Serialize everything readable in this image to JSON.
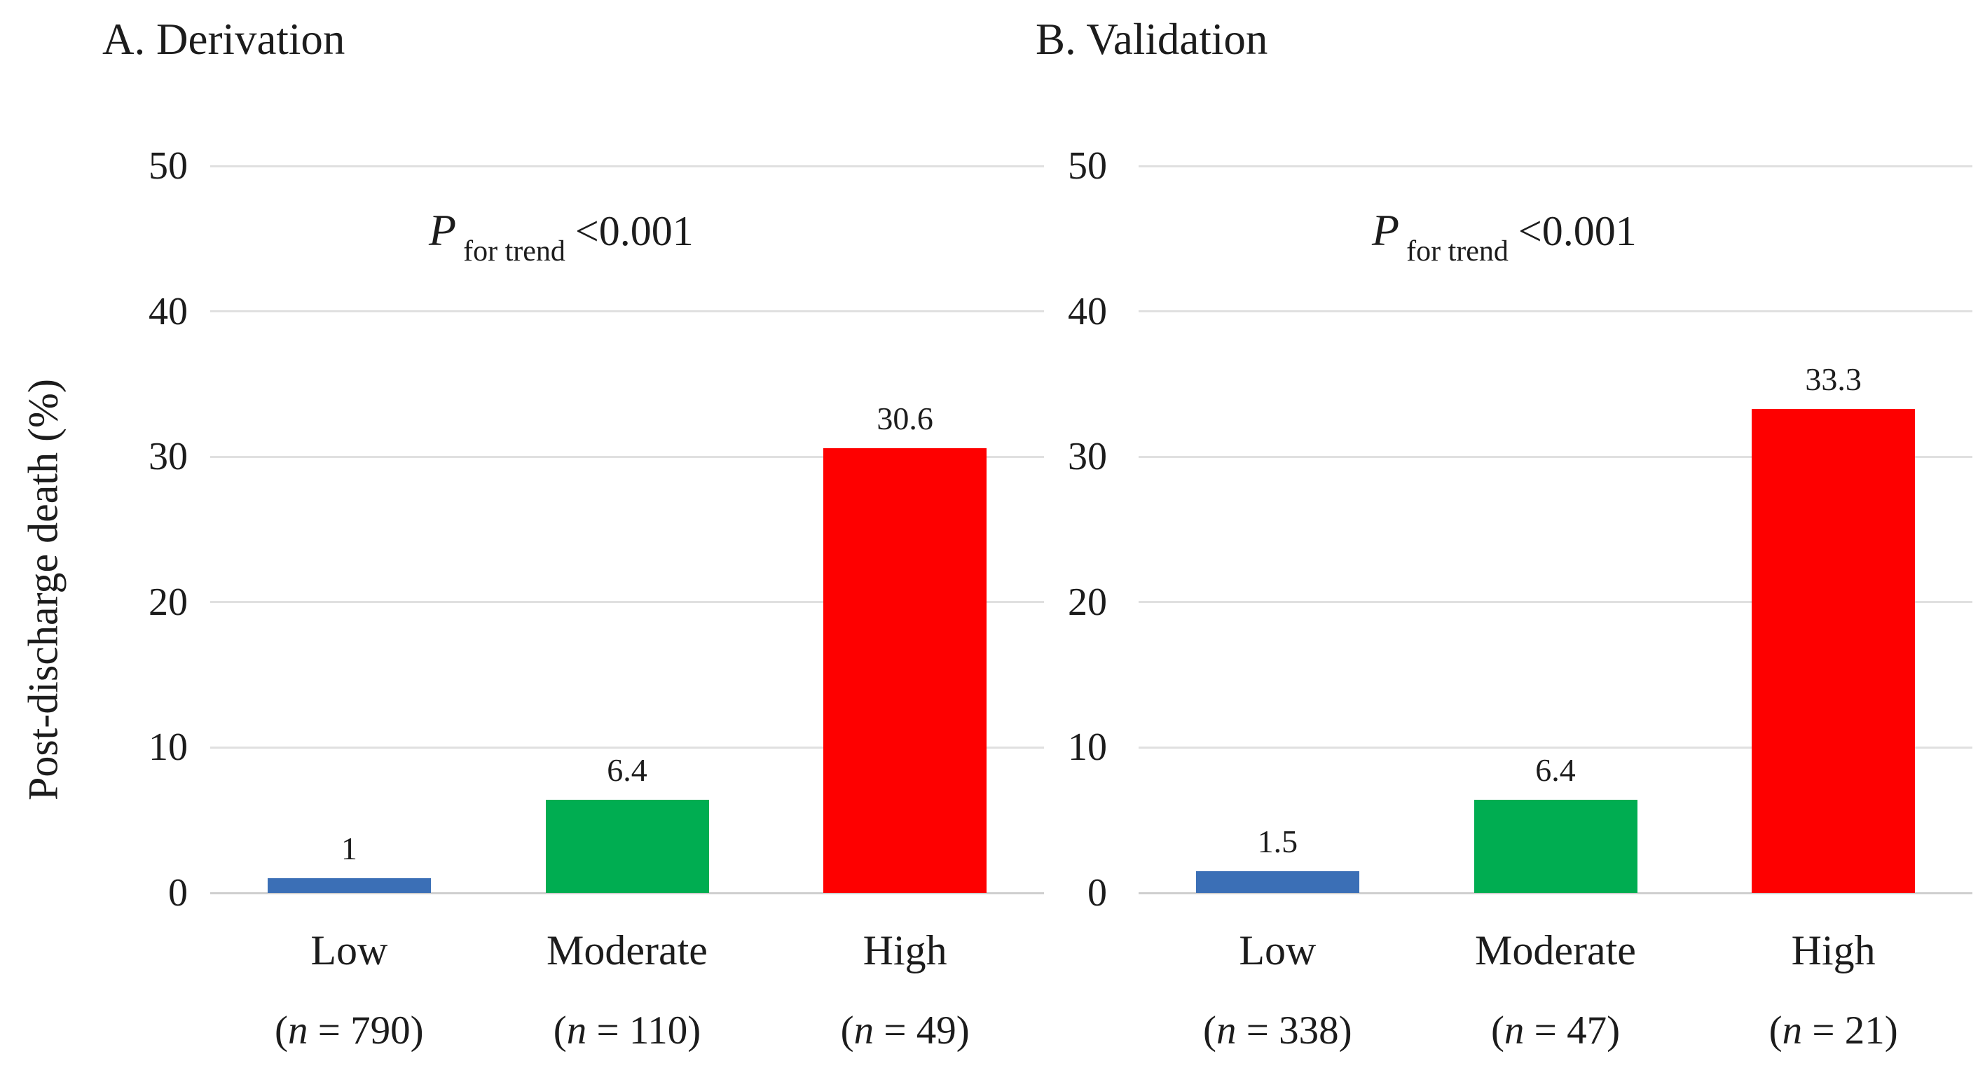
{
  "chart_data": [
    {
      "type": "bar",
      "panel": "A",
      "title": "A. Derivation",
      "ylabel": "Post-discharge death (%)",
      "ylim": [
        0,
        50
      ],
      "yticks": [
        0,
        10,
        20,
        30,
        40,
        50
      ],
      "grid": true,
      "legend": false,
      "categories": [
        "Low",
        "Moderate",
        "High"
      ],
      "n_labels": [
        "(n = 790)",
        "(n = 110)",
        "(n = 49)"
      ],
      "values": [
        1,
        6.4,
        30.6
      ],
      "value_labels": [
        "1",
        "6.4",
        "30.6"
      ],
      "bar_colors": [
        "#3b6fb6",
        "#00ad51",
        "#fe0000"
      ],
      "annotation": {
        "p": "P",
        "sub": "for trend",
        "value": "<0.001"
      }
    },
    {
      "type": "bar",
      "panel": "B",
      "title": "B. Validation",
      "ylabel": "Post-discharge death (%)",
      "ylim": [
        0,
        50
      ],
      "yticks": [
        0,
        10,
        20,
        30,
        40,
        50
      ],
      "grid": true,
      "legend": false,
      "categories": [
        "Low",
        "Moderate",
        "High"
      ],
      "n_labels": [
        "(n = 338)",
        "(n = 47)",
        "(n = 21)"
      ],
      "values": [
        1.5,
        6.4,
        33.3
      ],
      "value_labels": [
        "1.5",
        "6.4",
        "33.3"
      ],
      "bar_colors": [
        "#3b6fb6",
        "#00ad51",
        "#fe0000"
      ],
      "annotation": {
        "p": "P",
        "sub": "for trend",
        "value": "<0.001"
      }
    }
  ]
}
